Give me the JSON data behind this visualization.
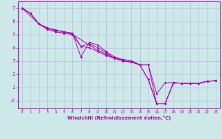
{
  "xlabel": "Windchill (Refroidissement éolien,°C)",
  "bg_color": "#cce8e8",
  "line_color": "#aa00aa",
  "grid_color": "#bbbbdd",
  "xlim": [
    -0.5,
    23.5
  ],
  "ylim": [
    -0.6,
    7.5
  ],
  "xticks": [
    0,
    1,
    2,
    3,
    4,
    5,
    6,
    7,
    8,
    9,
    10,
    11,
    12,
    13,
    14,
    15,
    16,
    17,
    18,
    19,
    20,
    21,
    22,
    23
  ],
  "yticks": [
    0,
    1,
    2,
    3,
    4,
    5,
    6,
    7
  ],
  "ytick_labels": [
    "-0",
    "1",
    "2",
    "3",
    "4",
    "5",
    "6",
    "7"
  ],
  "lines": [
    {
      "x": [
        0,
        1,
        2,
        3,
        4,
        5,
        6,
        7,
        8,
        9,
        10,
        11,
        12,
        13,
        14,
        15,
        16,
        17,
        18,
        19,
        20,
        21,
        22,
        23
      ],
      "y": [
        7.0,
        6.6,
        5.8,
        5.5,
        5.3,
        5.2,
        5.1,
        4.1,
        4.0,
        3.7,
        3.4,
        3.2,
        3.1,
        3.0,
        2.7,
        1.6,
        -0.25,
        -0.25,
        1.35,
        1.3,
        1.3,
        1.3,
        1.45,
        1.5
      ]
    },
    {
      "x": [
        0,
        1,
        2,
        3,
        4,
        5,
        6,
        7,
        8,
        9,
        10,
        11,
        12,
        13,
        14,
        15,
        16,
        17,
        18,
        19,
        20,
        21,
        22,
        23
      ],
      "y": [
        7.0,
        6.6,
        5.8,
        5.5,
        5.35,
        5.2,
        5.1,
        3.3,
        4.4,
        4.2,
        3.7,
        3.3,
        3.1,
        3.0,
        2.7,
        1.6,
        -0.25,
        -0.25,
        1.35,
        1.3,
        1.3,
        1.3,
        1.45,
        1.5
      ]
    },
    {
      "x": [
        0,
        1,
        2,
        3,
        4,
        5,
        6,
        7,
        8,
        9,
        10,
        11,
        12,
        13,
        14,
        15,
        16,
        17,
        18,
        19,
        20,
        21,
        22,
        23
      ],
      "y": [
        7.0,
        6.6,
        5.8,
        5.4,
        5.2,
        5.1,
        5.0,
        4.1,
        4.3,
        4.0,
        3.6,
        3.2,
        3.0,
        2.9,
        2.7,
        2.7,
        0.5,
        1.35,
        1.35,
        1.3,
        1.3,
        1.3,
        1.45,
        1.5
      ]
    },
    {
      "x": [
        0,
        2,
        3,
        4,
        5,
        6,
        8,
        9,
        10,
        11,
        12,
        13,
        14,
        15,
        16,
        17,
        18,
        19,
        20,
        21,
        22,
        23
      ],
      "y": [
        7.0,
        5.8,
        5.4,
        5.2,
        5.1,
        5.0,
        4.2,
        3.8,
        3.5,
        3.2,
        3.0,
        2.9,
        2.7,
        2.7,
        -0.25,
        -0.25,
        1.35,
        1.3,
        1.3,
        1.3,
        1.45,
        1.5
      ]
    }
  ]
}
